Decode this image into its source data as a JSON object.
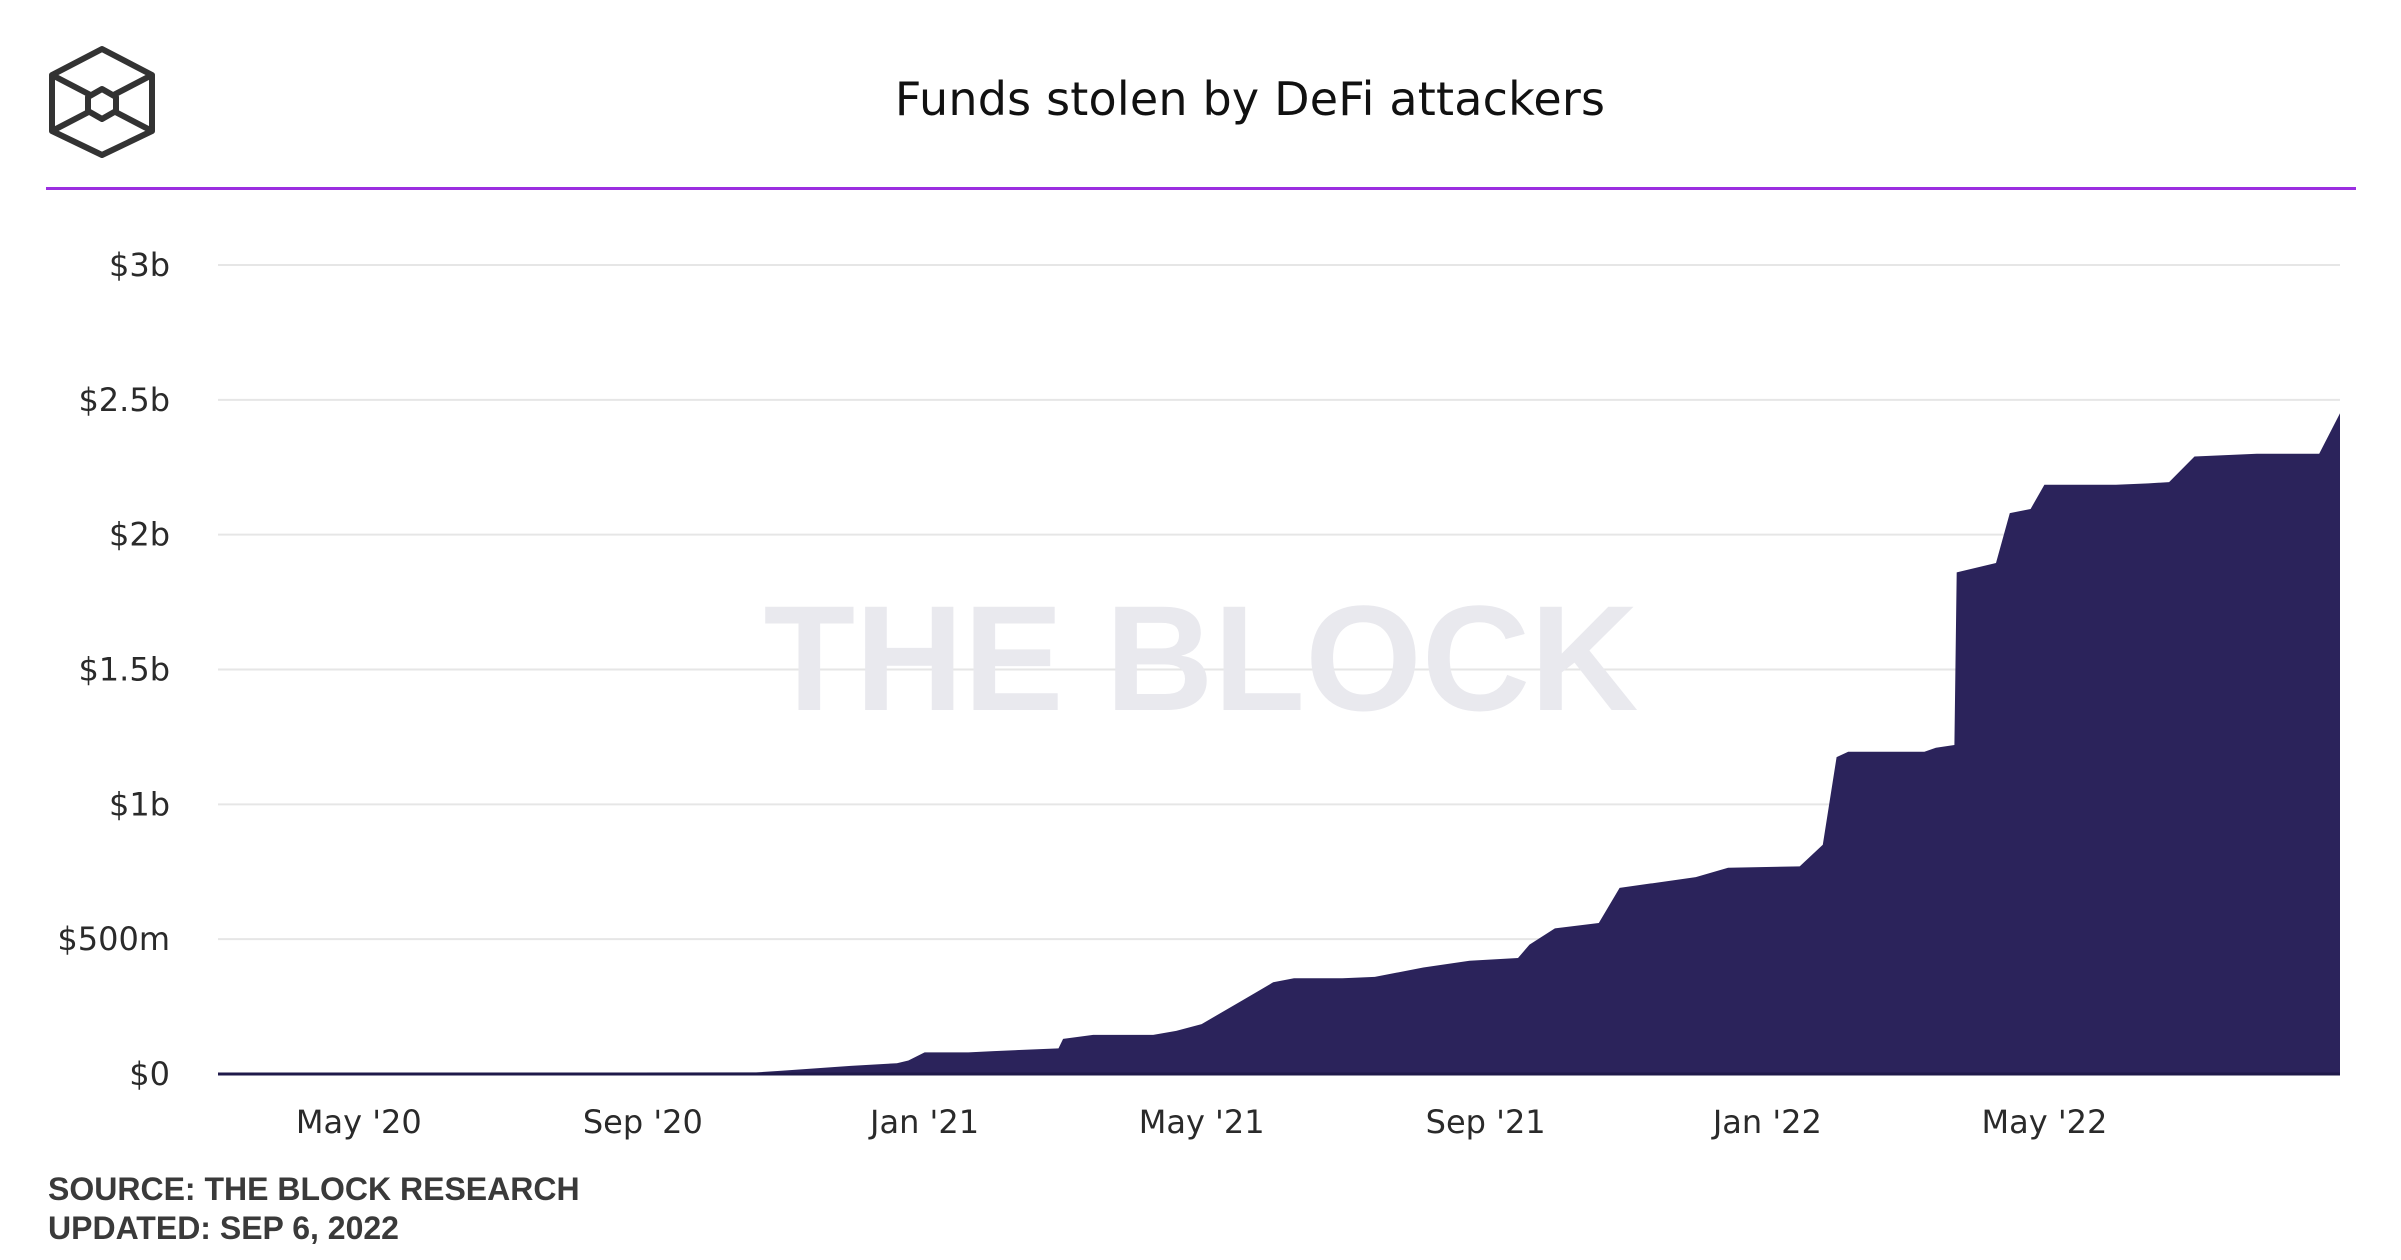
{
  "header": {
    "title": "Funds stolen by DeFi attackers",
    "logo_icon": "the-block-cube-icon"
  },
  "watermark": "THE BLOCK",
  "footer": {
    "source": "SOURCE: THE BLOCK RESEARCH",
    "updated": "UPDATED: SEP 6, 2022"
  },
  "colors": {
    "area": "#2b235b",
    "accent_rule": "#9b2fe0",
    "grid": "#e6e6e6"
  },
  "chart_data": {
    "type": "area",
    "title": "Funds stolen by DeFi attackers",
    "xlabel": "",
    "ylabel": "",
    "x_range": [
      "2020-03-01",
      "2022-09-06"
    ],
    "ylim": [
      0,
      3000000000
    ],
    "y_ticks": [
      {
        "value": 0,
        "label": "$0"
      },
      {
        "value": 500000000,
        "label": "$500m"
      },
      {
        "value": 1000000000,
        "label": "$1b"
      },
      {
        "value": 1500000000,
        "label": "$1.5b"
      },
      {
        "value": 2000000000,
        "label": "$2b"
      },
      {
        "value": 2500000000,
        "label": "$2.5b"
      },
      {
        "value": 3000000000,
        "label": "$3b"
      }
    ],
    "x_ticks": [
      {
        "date": "2020-05-01",
        "label": "May '20"
      },
      {
        "date": "2020-09-01",
        "label": "Sep '20"
      },
      {
        "date": "2021-01-01",
        "label": "Jan '21"
      },
      {
        "date": "2021-05-01",
        "label": "May '21"
      },
      {
        "date": "2021-09-01",
        "label": "Sep '21"
      },
      {
        "date": "2022-01-01",
        "label": "Jan '22"
      },
      {
        "date": "2022-05-01",
        "label": "May '22"
      }
    ],
    "grid": true,
    "legend": "none",
    "series": [
      {
        "points": [
          [
            "2020-03-01",
            5000000
          ],
          [
            "2020-10-20",
            6000000
          ],
          [
            "2020-10-31",
            12000000
          ],
          [
            "2020-11-30",
            30000000
          ],
          [
            "2020-12-20",
            40000000
          ],
          [
            "2020-12-25",
            50000000
          ],
          [
            "2021-01-01",
            80000000
          ],
          [
            "2021-01-20",
            80000000
          ],
          [
            "2021-01-31",
            85000000
          ],
          [
            "2021-02-28",
            95000000
          ],
          [
            "2021-03-02",
            130000000
          ],
          [
            "2021-03-15",
            145000000
          ],
          [
            "2021-04-10",
            145000000
          ],
          [
            "2021-04-20",
            160000000
          ],
          [
            "2021-05-01",
            185000000
          ],
          [
            "2021-05-10",
            230000000
          ],
          [
            "2021-05-18",
            270000000
          ],
          [
            "2021-05-24",
            300000000
          ],
          [
            "2021-06-01",
            340000000
          ],
          [
            "2021-06-10",
            355000000
          ],
          [
            "2021-07-01",
            355000000
          ],
          [
            "2021-07-15",
            360000000
          ],
          [
            "2021-08-05",
            395000000
          ],
          [
            "2021-08-25",
            420000000
          ],
          [
            "2021-09-15",
            430000000
          ],
          [
            "2021-09-20",
            480000000
          ],
          [
            "2021-10-01",
            540000000
          ],
          [
            "2021-10-20",
            560000000
          ],
          [
            "2021-10-29",
            690000000
          ],
          [
            "2021-12-01",
            730000000
          ],
          [
            "2021-12-15",
            765000000
          ],
          [
            "2022-01-15",
            770000000
          ],
          [
            "2022-01-25",
            850000000
          ],
          [
            "2022-01-31",
            1175000000
          ],
          [
            "2022-02-05",
            1195000000
          ],
          [
            "2022-03-10",
            1195000000
          ],
          [
            "2022-03-15",
            1210000000
          ],
          [
            "2022-03-23",
            1220000000
          ],
          [
            "2022-03-24",
            1860000000
          ],
          [
            "2022-04-10",
            1895000000
          ],
          [
            "2022-04-16",
            2080000000
          ],
          [
            "2022-04-25",
            2095000000
          ],
          [
            "2022-05-01",
            2185000000
          ],
          [
            "2022-06-01",
            2185000000
          ],
          [
            "2022-06-15",
            2190000000
          ],
          [
            "2022-06-24",
            2195000000
          ],
          [
            "2022-07-05",
            2290000000
          ],
          [
            "2022-08-01",
            2300000000
          ],
          [
            "2022-08-28",
            2300000000
          ],
          [
            "2022-09-06",
            2450000000
          ]
        ]
      }
    ]
  }
}
